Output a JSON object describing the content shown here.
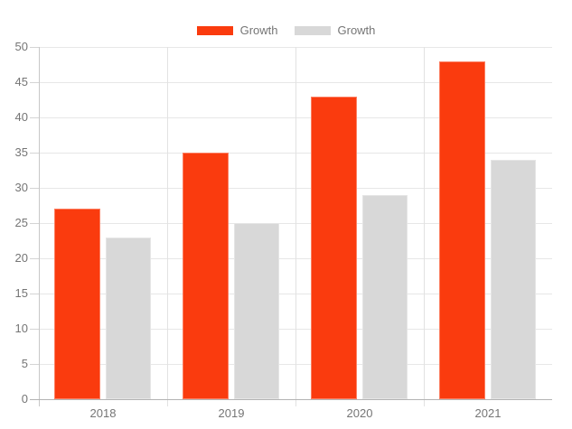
{
  "chart_data": {
    "type": "bar",
    "title": "",
    "xlabel": "",
    "ylabel": "",
    "categories": [
      "2018",
      "2019",
      "2020",
      "2021"
    ],
    "series": [
      {
        "name": "Growth",
        "color": "#fa3b0e",
        "values": [
          27,
          35,
          43,
          48
        ]
      },
      {
        "name": "Growth",
        "color": "#d8d8d8",
        "values": [
          23,
          25,
          29,
          34
        ]
      }
    ],
    "ylim": [
      0,
      50
    ],
    "ytick_step": 5,
    "yticks": [
      0,
      5,
      10,
      15,
      20,
      25,
      30,
      35,
      40,
      45,
      50
    ],
    "grid": true,
    "legend_position": "top"
  },
  "colors": {
    "background": "#ffffff",
    "axis_label": "#757575",
    "gridline": "#e7e7e7",
    "axis_line": "#b3b3b3",
    "bar_red": "#fa3b0e",
    "bar_gray": "#d8d8d8"
  }
}
